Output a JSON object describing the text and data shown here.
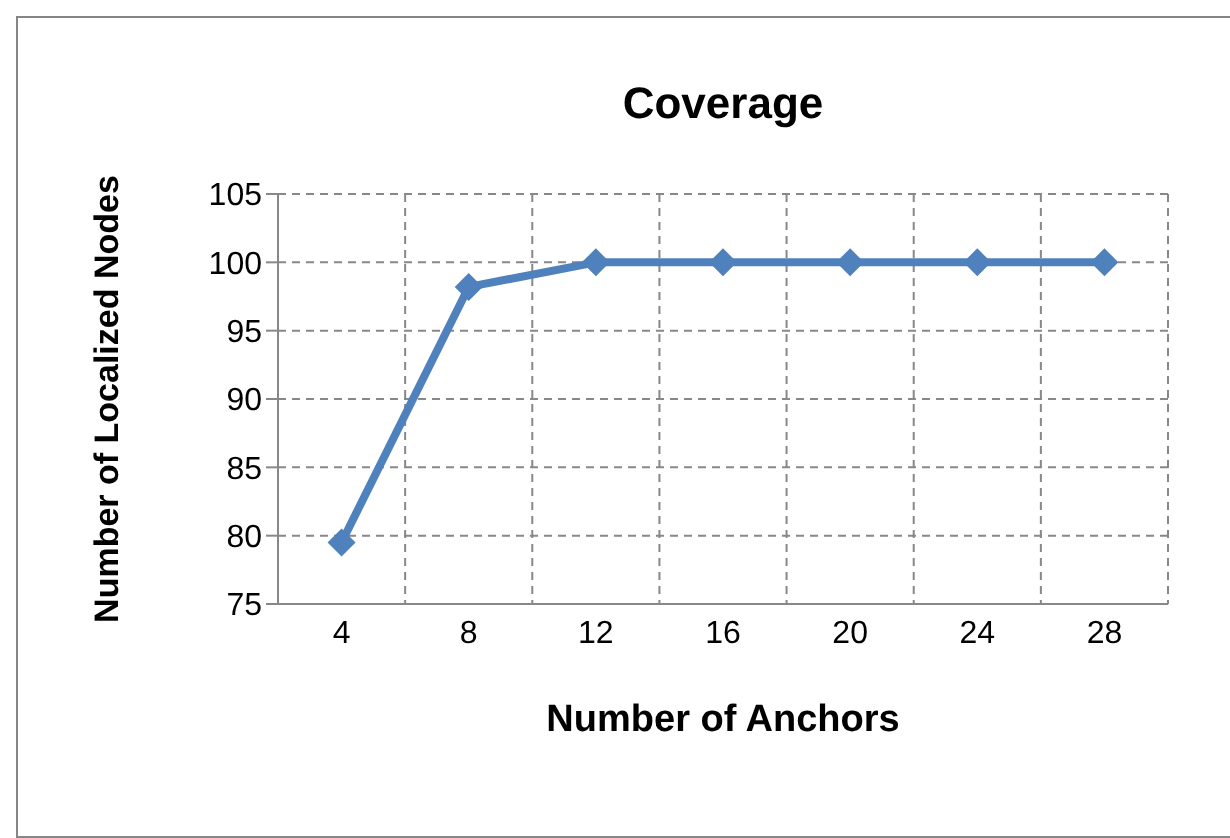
{
  "chart_data": {
    "type": "line",
    "title": "Coverage",
    "xlabel": "Number of Anchors",
    "ylabel": "Number of Localized Nodes",
    "categories": [
      "4",
      "8",
      "12",
      "16",
      "20",
      "24",
      "28"
    ],
    "series": [
      {
        "color": "#4f81bd",
        "values": [
          79.5,
          98.2,
          100,
          100,
          100,
          100,
          100
        ]
      }
    ],
    "ylim": [
      75,
      105
    ],
    "yticks": [
      75,
      80,
      85,
      90,
      95,
      100,
      105
    ],
    "grid": true,
    "marker": "diamond",
    "line_style": "solid"
  }
}
